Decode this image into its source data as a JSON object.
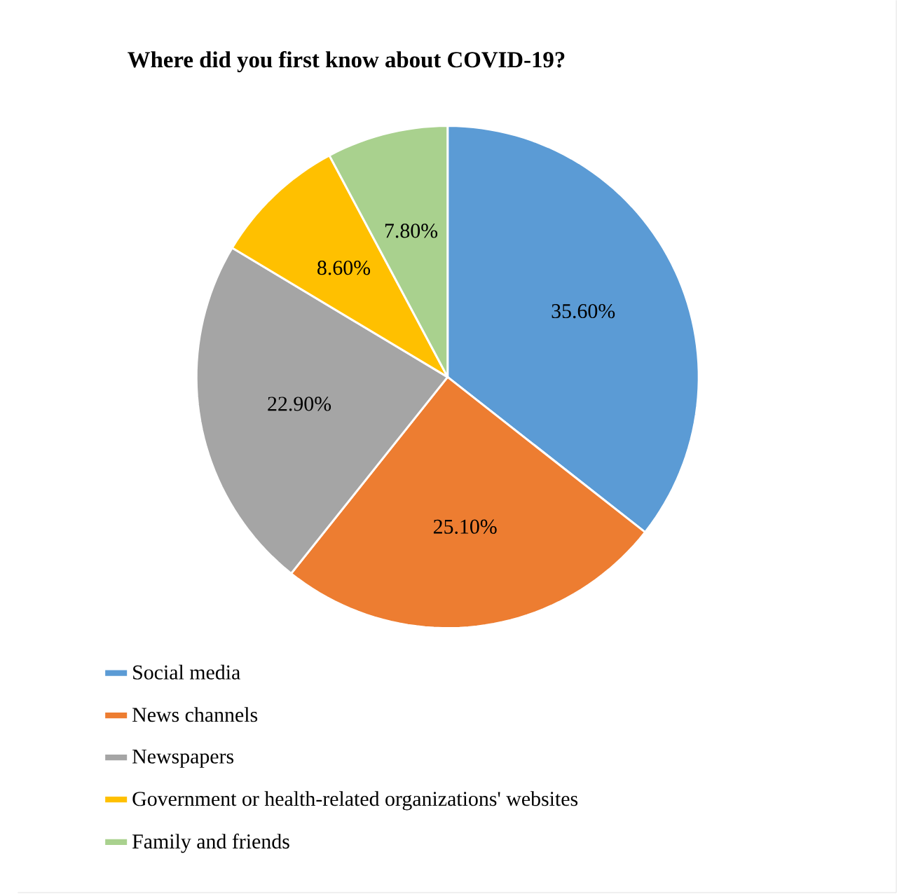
{
  "chart_data": {
    "type": "pie",
    "title": "Where did you first know about COVID-19?",
    "categories": [
      "Social media",
      "News channels",
      "Newspapers",
      "Government or health-related organizations' websites",
      "Family and friends"
    ],
    "values": [
      35.6,
      25.1,
      22.9,
      8.6,
      7.8
    ],
    "value_labels": [
      "35.60%",
      "25.10%",
      "22.90%",
      "8.60%",
      "7.80%"
    ],
    "colors": [
      "#5b9bd5",
      "#ed7d31",
      "#a5a5a5",
      "#ffc000",
      "#a9d18e"
    ],
    "legend": "bottom"
  }
}
